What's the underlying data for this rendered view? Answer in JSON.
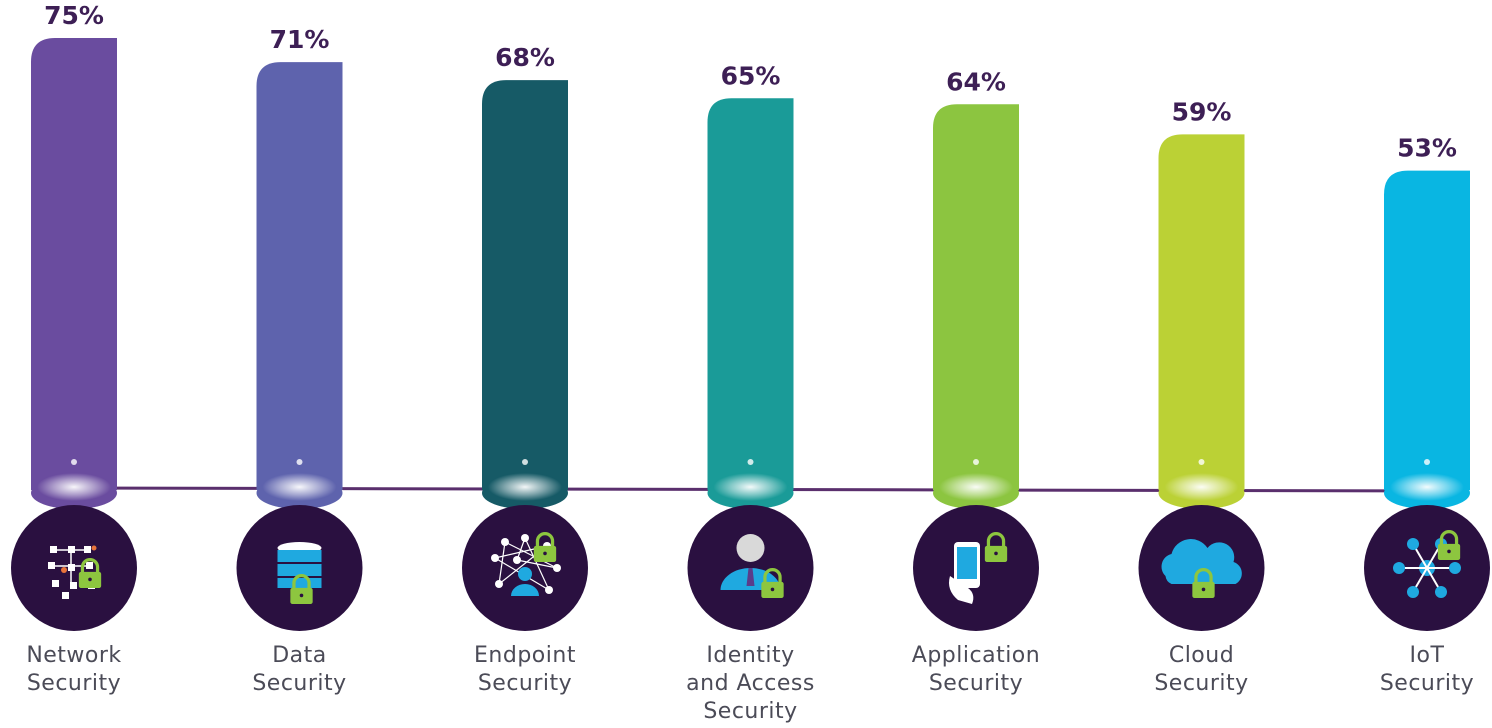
{
  "chart_data": {
    "type": "bar",
    "categories": [
      "Network Security",
      "Data Security",
      "Endpoint Security",
      "Identity and Access Security",
      "Application Security",
      "Cloud Security",
      "IoT Security"
    ],
    "category_lines": [
      [
        "Network",
        "Security"
      ],
      [
        "Data",
        "Security"
      ],
      [
        "Endpoint",
        "Security"
      ],
      [
        "Identity",
        "and Access",
        "Security"
      ],
      [
        "Application",
        "Security"
      ],
      [
        "Cloud",
        "Security"
      ],
      [
        "IoT",
        "Security"
      ]
    ],
    "values": [
      75,
      71,
      68,
      65,
      64,
      59,
      53
    ],
    "value_labels": [
      "75%",
      "71%",
      "68%",
      "65%",
      "64%",
      "59%",
      "53%"
    ],
    "colors": [
      "#6a4c9f",
      "#5e63ad",
      "#165a66",
      "#1a9b98",
      "#8cc540",
      "#bbd135",
      "#09b6e2"
    ],
    "icons": [
      "network-lock-icon",
      "database-lock-icon",
      "endpoint-network-lock-icon",
      "user-lock-icon",
      "mobile-app-lock-icon",
      "cloud-lock-icon",
      "iot-hub-lock-icon"
    ],
    "title": "",
    "xlabel": "",
    "ylabel": "",
    "unit": "%",
    "grid": false,
    "legend": "none"
  },
  "theme": {
    "icon_bg": "#2a1040",
    "baseline": "#5a2f6d",
    "lock": "#8dc63f",
    "icon_accent": "#1fa9e0"
  }
}
